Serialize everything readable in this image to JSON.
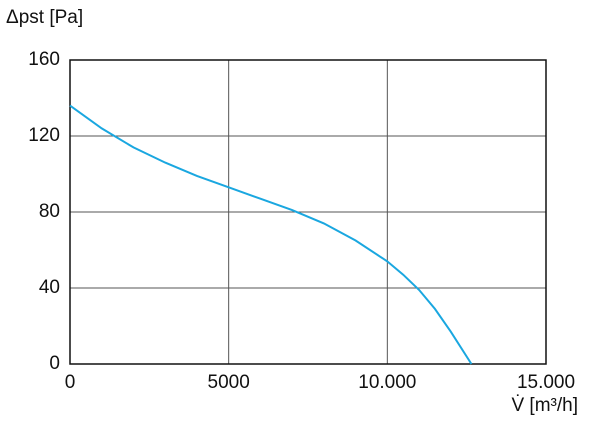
{
  "chart_data": {
    "type": "line",
    "y_label": "Δpst [Pa]",
    "x_label": "V̇ [m³/h]",
    "x": [
      0,
      1000,
      2000,
      3000,
      4000,
      5000,
      6000,
      7000,
      8000,
      9000,
      10000,
      10500,
      11000,
      11500,
      12000,
      12650
    ],
    "series": [
      {
        "color": "#1aa7e0",
        "values": [
          136,
          124,
          114,
          106,
          99,
          93,
          87,
          81,
          74,
          65,
          54,
          47,
          39,
          29,
          17,
          0
        ]
      }
    ],
    "xlim": [
      0,
      15000
    ],
    "xticks": [
      0,
      5000,
      {
        "value": 10000,
        "label": "10.000"
      },
      {
        "value": 15000,
        "label": "15.000"
      }
    ],
    "ylim": [
      0,
      160
    ],
    "yticks": [
      0,
      40,
      80,
      120,
      160
    ],
    "grid": true
  }
}
